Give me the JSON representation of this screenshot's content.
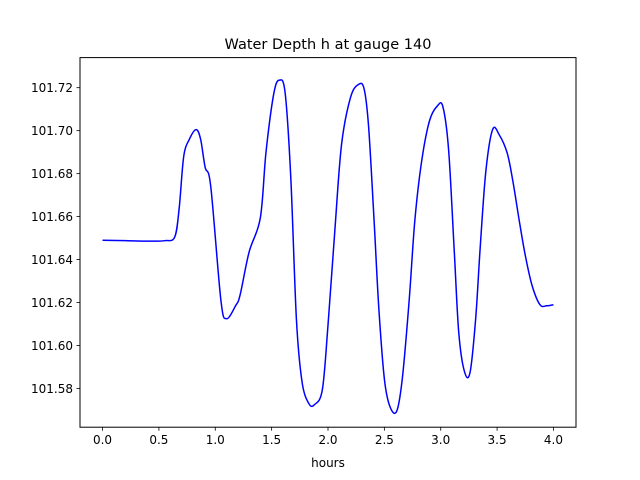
{
  "chart_data": {
    "type": "line",
    "title": "Water Depth h at gauge 140",
    "xlabel": "hours",
    "ylabel": "",
    "xlim": [
      -0.2,
      4.2
    ],
    "ylim": [
      101.562,
      101.734
    ],
    "grid": false,
    "x_ticks": [
      0.0,
      0.5,
      1.0,
      1.5,
      2.0,
      2.5,
      3.0,
      3.5,
      4.0
    ],
    "x_tick_labels": [
      "0.0",
      "0.5",
      "1.0",
      "1.5",
      "2.0",
      "2.5",
      "3.0",
      "3.5",
      "4.0"
    ],
    "y_ticks": [
      101.58,
      101.6,
      101.62,
      101.64,
      101.66,
      101.68,
      101.7,
      101.72
    ],
    "y_tick_labels": [
      "101.58",
      "101.60",
      "101.62",
      "101.64",
      "101.66",
      "101.68",
      "101.70",
      "101.72"
    ],
    "series": [
      {
        "color": "#0000ff",
        "x": [
          0.0,
          0.2,
          0.4,
          0.55,
          0.64,
          0.68,
          0.72,
          0.77,
          0.83,
          0.87,
          0.91,
          0.96,
          1.05,
          1.1,
          1.18,
          1.22,
          1.3,
          1.4,
          1.45,
          1.52,
          1.57,
          1.62,
          1.67,
          1.72,
          1.77,
          1.83,
          1.88,
          1.95,
          2.0,
          2.06,
          2.12,
          2.2,
          2.27,
          2.32,
          2.36,
          2.41,
          2.45,
          2.5,
          2.55,
          2.61,
          2.66,
          2.72,
          2.77,
          2.83,
          2.9,
          2.97,
          3.02,
          3.07,
          3.12,
          3.16,
          3.21,
          3.26,
          3.31,
          3.35,
          3.4,
          3.46,
          3.52,
          3.59,
          3.64,
          3.7,
          3.75,
          3.81,
          3.88,
          3.94,
          4.0
        ],
        "y": [
          101.649,
          101.6488,
          101.6486,
          101.6488,
          101.6505,
          101.664,
          101.688,
          101.696,
          101.7005,
          101.696,
          101.683,
          101.674,
          101.621,
          101.6125,
          101.6185,
          101.6235,
          101.6435,
          101.6595,
          101.69,
          101.7175,
          101.7235,
          101.7175,
          101.678,
          101.612,
          101.583,
          101.573,
          101.5725,
          101.5795,
          101.6095,
          101.653,
          101.6935,
          101.7155,
          101.7215,
          101.7195,
          101.702,
          101.657,
          101.618,
          101.5845,
          101.5715,
          101.5695,
          101.585,
          101.621,
          101.658,
          101.6855,
          101.7045,
          101.7115,
          101.711,
          101.691,
          101.644,
          101.606,
          101.588,
          101.5875,
          101.6125,
          101.6455,
          101.681,
          101.7005,
          101.698,
          101.6895,
          101.6765,
          101.657,
          101.642,
          101.628,
          101.619,
          101.6185,
          101.619
        ]
      }
    ]
  }
}
